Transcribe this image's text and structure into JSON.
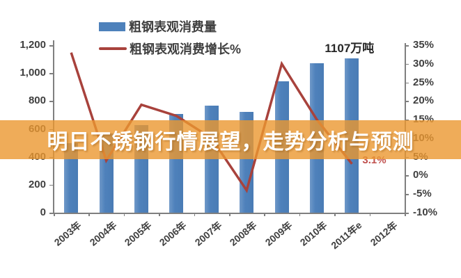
{
  "banner": {
    "title": "明日不锈钢行情展望，走势分析与预测"
  },
  "chart_data": {
    "type": "bar+line",
    "categories": [
      "2003年",
      "2004年",
      "2005年",
      "2006年",
      "2007年",
      "2008年",
      "2009年",
      "2010年",
      "2011年e",
      "2012年"
    ],
    "series": [
      {
        "name": "粗钢表观消费量",
        "type": "bar",
        "axis": "left",
        "values": [
          500,
          570,
          625,
          705,
          765,
          720,
          940,
          1070,
          1107,
          null
        ]
      },
      {
        "name": "粗钢表观消费增长%",
        "type": "line",
        "axis": "right",
        "values": [
          33,
          4,
          19,
          16,
          10,
          -4,
          30,
          15,
          3.1,
          null
        ]
      }
    ],
    "left_axis": {
      "min": 0,
      "max": 1200,
      "step": 200,
      "tick_labels": [
        "0",
        "200",
        "400",
        "600",
        "800",
        "1,000",
        "1,200"
      ]
    },
    "right_axis": {
      "min": -10,
      "max": 35,
      "step": 5,
      "tick_labels": [
        "-10%",
        "-5%",
        "0%",
        "5%",
        "10%",
        "15%",
        "20%",
        "25%",
        "30%",
        "35%"
      ]
    },
    "annotation": "1107万吨",
    "line_end_label": "3.1%",
    "grid": false,
    "legend_position": "top"
  },
  "colors": {
    "bar": "#4e81bb",
    "line": "#a8423c",
    "banner_overlay": "rgba(235,151,48,0.8)",
    "data_label": "#c0504d",
    "axis_text": "#3f3f3f",
    "axis_line": "#7f7f7f"
  }
}
